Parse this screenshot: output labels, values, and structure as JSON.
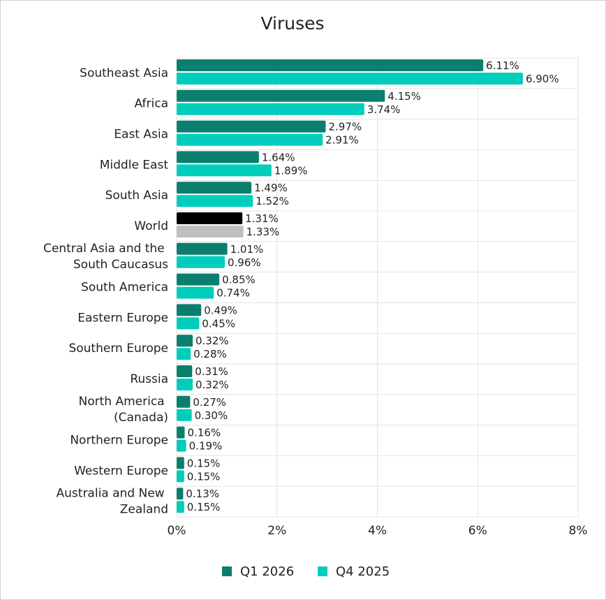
{
  "chart_data": {
    "type": "hbar",
    "title": "Viruses",
    "categories": [
      "Southeast Asia",
      "Africa",
      "East Asia",
      "Middle East",
      "South Asia",
      "World",
      "Central Asia and the South Caucasus",
      "South America",
      "Eastern Europe",
      "Southern Europe",
      "Russia",
      "North America (Canada)",
      "Northern Europe",
      "Western Europe",
      "Australia and New Zealand"
    ],
    "series": [
      {
        "name": "Q1 2026",
        "color": "#0b7f6d",
        "colors": [
          "#0b7f6d",
          "#0b7f6d",
          "#0b7f6d",
          "#0b7f6d",
          "#0b7f6d",
          "#000000",
          "#0b7f6d",
          "#0b7f6d",
          "#0b7f6d",
          "#0b7f6d",
          "#0b7f6d",
          "#0b7f6d",
          "#0b7f6d",
          "#0b7f6d",
          "#0b7f6d"
        ],
        "values": [
          6.11,
          4.15,
          2.97,
          1.64,
          1.49,
          1.31,
          1.01,
          0.85,
          0.49,
          0.32,
          0.31,
          0.27,
          0.16,
          0.15,
          0.13
        ],
        "value_labels": [
          "6.11%",
          "4.15%",
          "2.97%",
          "1.64%",
          "1.49%",
          "1.31%",
          "1.01%",
          "0.85%",
          "0.49%",
          "0.32%",
          "0.31%",
          "0.27%",
          "0.16%",
          "0.15%",
          "0.13%"
        ]
      },
      {
        "name": "Q4 2025",
        "color": "#00cdbb",
        "colors": [
          "#00cdbb",
          "#00cdbb",
          "#00cdbb",
          "#00cdbb",
          "#00cdbb",
          "#bfbfbf",
          "#00cdbb",
          "#00cdbb",
          "#00cdbb",
          "#00cdbb",
          "#00cdbb",
          "#00cdbb",
          "#00cdbb",
          "#00cdbb",
          "#00cdbb"
        ],
        "values": [
          6.9,
          3.74,
          2.91,
          1.89,
          1.52,
          1.33,
          0.96,
          0.74,
          0.45,
          0.28,
          0.32,
          0.3,
          0.19,
          0.15,
          0.15
        ],
        "value_labels": [
          "6.90%",
          "3.74%",
          "2.91%",
          "1.89%",
          "1.52%",
          "1.33%",
          "0.96%",
          "0.74%",
          "0.45%",
          "0.28%",
          "0.32%",
          "0.30%",
          "0.19%",
          "0.15%",
          "0.15%"
        ]
      }
    ],
    "xlim": [
      0,
      8
    ],
    "xticks": [
      {
        "value": 0,
        "label": "0%"
      },
      {
        "value": 2,
        "label": "2%"
      },
      {
        "value": 4,
        "label": "4%"
      },
      {
        "value": 6,
        "label": "6%"
      },
      {
        "value": 8,
        "label": "8%"
      }
    ],
    "grid": true,
    "legend": "bottom"
  }
}
